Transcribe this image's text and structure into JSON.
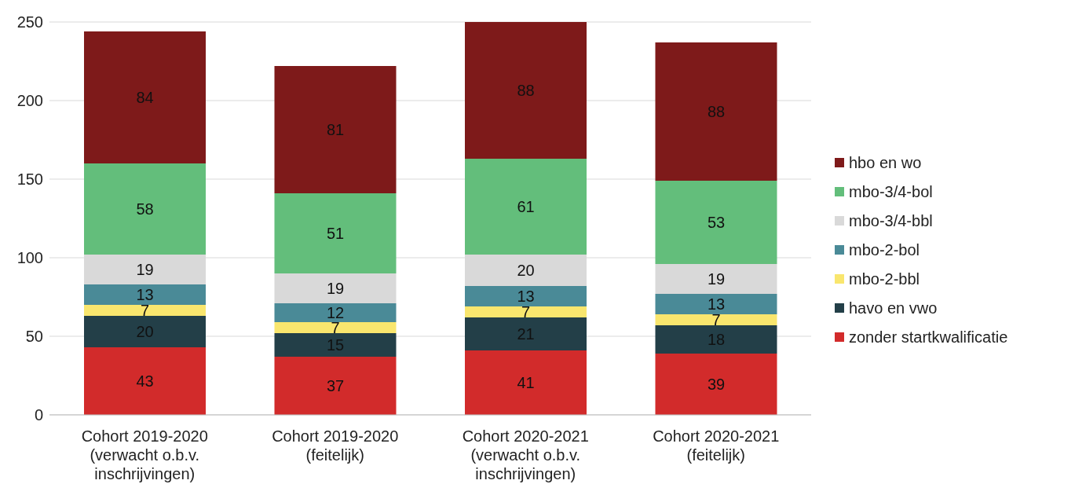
{
  "chart_data": {
    "type": "bar",
    "stacked": true,
    "categories": [
      "Cohort 2019-2020 (verwacht o.b.v. inschrijvingen)",
      "Cohort 2019-2020 (feitelijk)",
      "Cohort 2020-2021 (verwacht o.b.v. inschrijvingen)",
      "Cohort 2020-2021 (feitelijk)"
    ],
    "series": [
      {
        "name": "zonder startkwalificatie",
        "color": "#d22b2b",
        "values": [
          43,
          37,
          41,
          39
        ]
      },
      {
        "name": "havo en vwo",
        "color": "#233f48",
        "values": [
          20,
          15,
          21,
          18
        ]
      },
      {
        "name": "mbo-2-bbl",
        "color": "#f9e66e",
        "values": [
          7,
          7,
          7,
          7
        ]
      },
      {
        "name": "mbo-2-bol",
        "color": "#4a8a97",
        "values": [
          13,
          12,
          13,
          13
        ]
      },
      {
        "name": "mbo-3/4-bbl",
        "color": "#d9d9d9",
        "values": [
          19,
          19,
          20,
          19
        ]
      },
      {
        "name": "mbo-3/4-bol",
        "color": "#63be7b",
        "values": [
          58,
          51,
          61,
          53
        ]
      },
      {
        "name": "hbo en wo",
        "color": "#7e1a1a",
        "values": [
          84,
          81,
          88,
          88
        ]
      }
    ],
    "ylim": [
      0,
      250
    ],
    "yticks": [
      0,
      50,
      100,
      150,
      200,
      250
    ],
    "grid": "y",
    "legend": "right",
    "data_labels": true
  }
}
